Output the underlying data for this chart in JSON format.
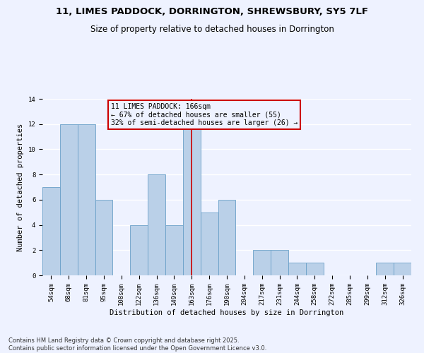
{
  "title_line1": "11, LIMES PADDOCK, DORRINGTON, SHREWSBURY, SY5 7LF",
  "title_line2": "Size of property relative to detached houses in Dorrington",
  "xlabel": "Distribution of detached houses by size in Dorrington",
  "ylabel": "Number of detached properties",
  "categories": [
    "54sqm",
    "68sqm",
    "81sqm",
    "95sqm",
    "108sqm",
    "122sqm",
    "136sqm",
    "149sqm",
    "163sqm",
    "176sqm",
    "190sqm",
    "204sqm",
    "217sqm",
    "231sqm",
    "244sqm",
    "258sqm",
    "272sqm",
    "285sqm",
    "299sqm",
    "312sqm",
    "326sqm"
  ],
  "values": [
    7,
    12,
    12,
    6,
    0,
    4,
    8,
    4,
    12,
    5,
    6,
    0,
    2,
    2,
    1,
    1,
    0,
    0,
    0,
    1,
    1
  ],
  "bar_color": "#BAD0E8",
  "bar_edge_color": "#6AA0C8",
  "highlight_index": 8,
  "highlight_line_color": "#CC0000",
  "annotation_box_color": "#CC0000",
  "annotation_text": "11 LIMES PADDOCK: 166sqm\n← 67% of detached houses are smaller (55)\n32% of semi-detached houses are larger (26) →",
  "footer": "Contains HM Land Registry data © Crown copyright and database right 2025.\nContains public sector information licensed under the Open Government Licence v3.0.",
  "ylim": [
    0,
    14
  ],
  "yticks": [
    0,
    2,
    4,
    6,
    8,
    10,
    12,
    14
  ],
  "background_color": "#EEF2FF",
  "grid_color": "#FFFFFF",
  "title_fontsize": 9.5,
  "subtitle_fontsize": 8.5,
  "axis_label_fontsize": 7.5,
  "tick_fontsize": 6.5,
  "footer_fontsize": 6,
  "annotation_fontsize": 7
}
